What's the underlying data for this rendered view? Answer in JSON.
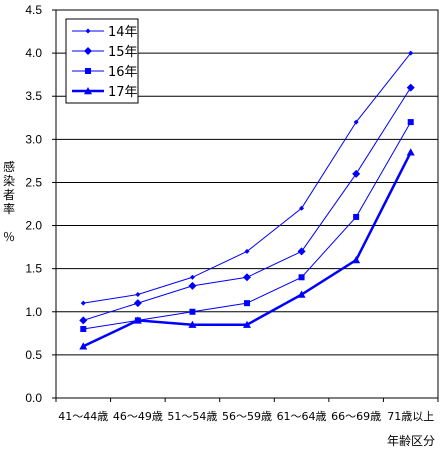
{
  "chart_data": {
    "type": "line",
    "categories": [
      "41～44歳",
      "46～49歳",
      "51～54歳",
      "56～59歳",
      "61～64歳",
      "66～69歳",
      "71歳以上"
    ],
    "series": [
      {
        "name": "14年",
        "values": [
          1.1,
          1.2,
          1.4,
          1.7,
          2.2,
          3.2,
          4.0
        ],
        "marker": "small-diamond",
        "line_width": "thin"
      },
      {
        "name": "15年",
        "values": [
          0.9,
          1.1,
          1.3,
          1.4,
          1.7,
          2.6,
          3.6
        ],
        "marker": "diamond",
        "line_width": "thin"
      },
      {
        "name": "16年",
        "values": [
          0.8,
          0.9,
          1.0,
          1.1,
          1.4,
          2.1,
          3.2
        ],
        "marker": "square",
        "line_width": "thin"
      },
      {
        "name": "17年",
        "values": [
          0.6,
          0.9,
          0.85,
          0.85,
          1.2,
          1.6,
          2.85
        ],
        "marker": "triangle",
        "line_width": "thick"
      }
    ],
    "ylabel_chars": [
      "感",
      "染",
      "者",
      "率",
      "",
      "％"
    ],
    "xlabel": "年齢区分",
    "ylim": [
      0.0,
      4.5
    ],
    "yticks": [
      "0.0",
      "0.5",
      "1.0",
      "1.5",
      "2.0",
      "2.5",
      "3.0",
      "3.5",
      "4.0",
      "4.5"
    ],
    "grid": true,
    "legend_position": "top-left",
    "line_color": "#0000ff"
  }
}
